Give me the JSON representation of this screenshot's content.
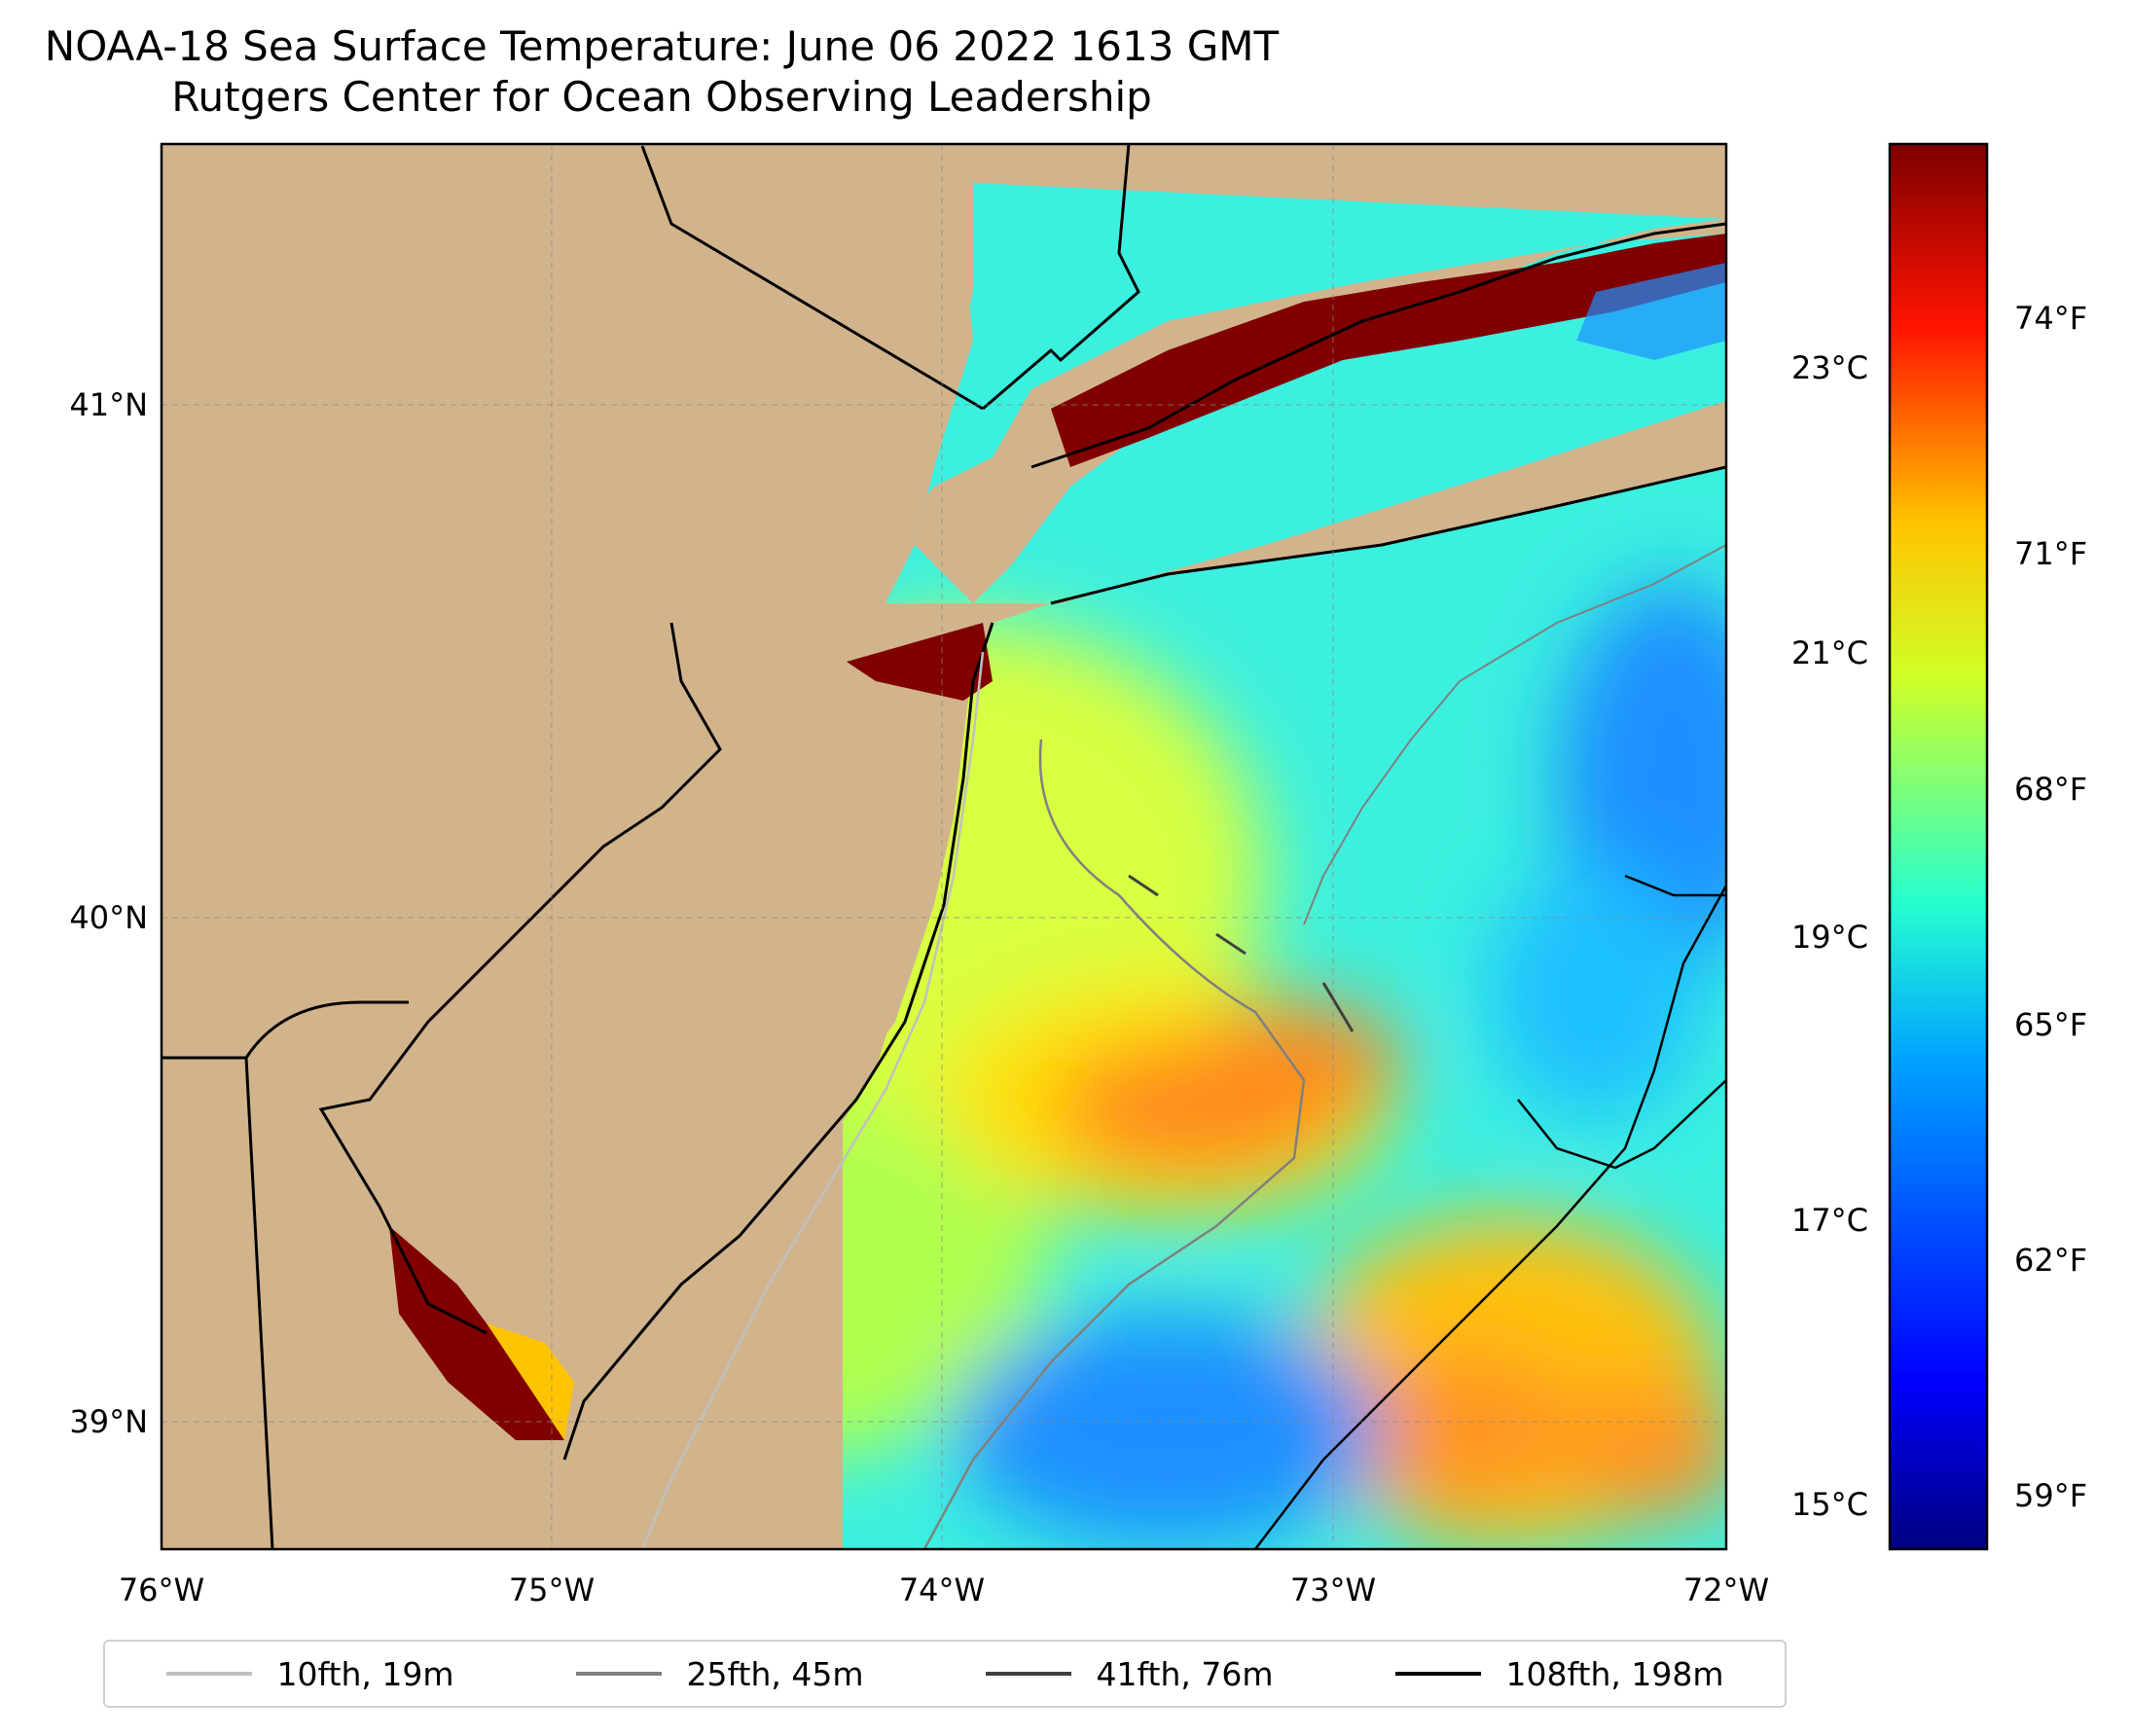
{
  "title": {
    "line1": "NOAA-18 Sea Surface Temperature: June 06 2022 1613 GMT",
    "line2": "Rutgers Center for Ocean Observing Leadership"
  },
  "map": {
    "lon_range": [
      -76,
      -72
    ],
    "lat_range": [
      38.83,
      41.6
    ],
    "lon_ticks": [
      "76°W",
      "75°W",
      "74°W",
      "73°W",
      "72°W"
    ],
    "lat_ticks": [
      "41°N",
      "40°N",
      "39°N"
    ]
  },
  "colorbar": {
    "celsius_ticks": [
      "23°C",
      "21°C",
      "19°C",
      "17°C",
      "15°C"
    ],
    "fahrenheit_ticks": [
      "74°F",
      "71°F",
      "68°F",
      "65°F",
      "62°F",
      "59°F"
    ],
    "range_f": [
      58.0,
      76.5
    ]
  },
  "legend": [
    {
      "label": "10fth, 19m",
      "color": "#c0c0c0"
    },
    {
      "label": "25fth, 45m",
      "color": "#808080"
    },
    {
      "label": "41fth, 76m",
      "color": "#404040"
    },
    {
      "label": "108fth, 198m",
      "color": "#000000"
    }
  ],
  "colors": {
    "land": "#d2b48c",
    "hot": "#800000",
    "warm": "#ff8a1a",
    "mild": "#f0ff40",
    "cool": "#30ffd8",
    "cold": "#1e90ff"
  }
}
